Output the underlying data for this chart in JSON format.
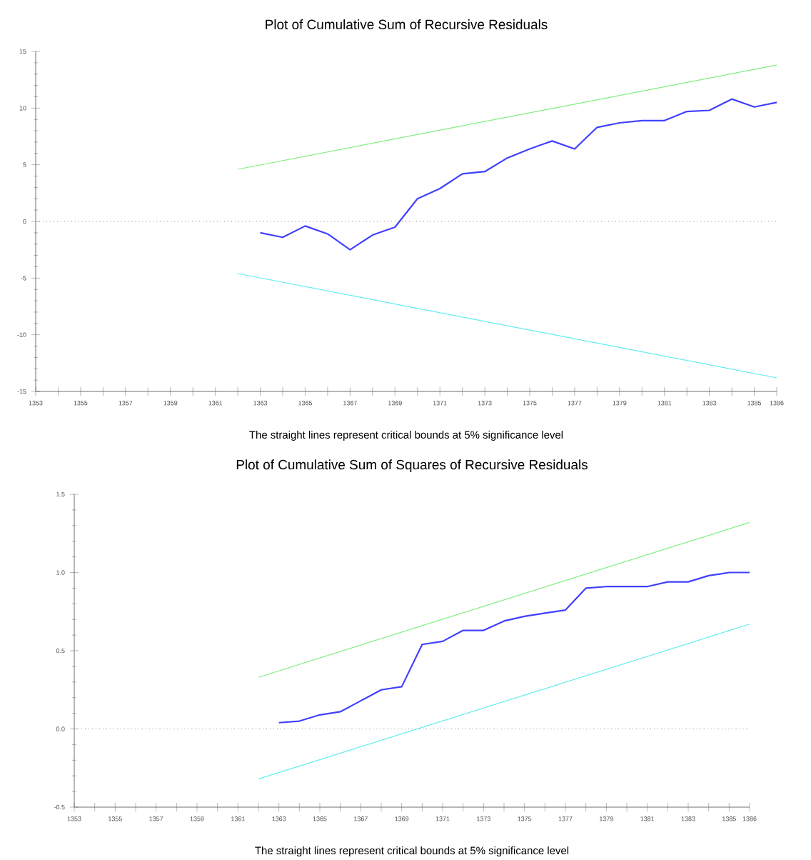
{
  "chart_data": [
    {
      "type": "line",
      "title": "Plot of Cumulative Sum of Recursive Residuals",
      "annotations": [
        "The straight lines represent critical bounds at 5% significance level"
      ],
      "xlim": [
        1353,
        1386
      ],
      "ylim": [
        -15,
        15
      ],
      "xticks": [
        1353,
        {
          "value": 1354,
          "label": null
        },
        1355,
        {
          "value": 1356,
          "label": null
        },
        1357,
        {
          "value": 1358,
          "label": null
        },
        1359,
        {
          "value": 1360,
          "label": null
        },
        1361,
        {
          "value": 1362,
          "label": null
        },
        1363,
        {
          "value": 1364,
          "label": null
        },
        1365,
        {
          "value": 1366,
          "label": null
        },
        1367,
        {
          "value": 1368,
          "label": null
        },
        1369,
        {
          "value": 1370,
          "label": null
        },
        1371,
        {
          "value": 1372,
          "label": null
        },
        1373,
        {
          "value": 1374,
          "label": null
        },
        1375,
        {
          "value": 1376,
          "label": null
        },
        1377,
        {
          "value": 1378,
          "label": null
        },
        1379,
        {
          "value": 1380,
          "label": null
        },
        1381,
        {
          "value": 1382,
          "label": null
        },
        1383,
        {
          "value": 1384,
          "label": null
        },
        1385,
        1386
      ],
      "yticks": [
        -15,
        -10,
        -5,
        0,
        5,
        10,
        15
      ],
      "series": [
        {
          "color": "#4040ff",
          "x": [
            1363,
            1364,
            1365,
            1366,
            1367,
            1368,
            1369,
            1370,
            1371,
            1372,
            1373,
            1374,
            1375,
            1376,
            1377,
            1378,
            1379,
            1380,
            1381,
            1382,
            1383,
            1384,
            1385,
            1386
          ],
          "values": [
            -1.0,
            -1.4,
            -0.4,
            -1.1,
            -2.5,
            -1.2,
            -0.5,
            2.0,
            2.9,
            4.2,
            4.4,
            5.6,
            6.4,
            7.1,
            6.4,
            8.3,
            8.7,
            8.9,
            8.9,
            9.7,
            9.8,
            10.8,
            10.1,
            10.5
          ]
        },
        {
          "color": "#80ee80",
          "x": [
            1362,
            1386
          ],
          "values": [
            4.6,
            13.8
          ]
        },
        {
          "color": "#60eeee",
          "x": [
            1362,
            1386
          ],
          "values": [
            -4.6,
            -13.8
          ]
        }
      ],
      "ref_lines": [
        {
          "axis": "y",
          "value": 0,
          "line_style": "dotted",
          "color": "#808080"
        }
      ]
    },
    {
      "type": "line",
      "title": "Plot of Cumulative Sum of Squares of Recursive Residuals",
      "annotations": [
        "The straight lines represent critical bounds at 5% significance level"
      ],
      "xlim": [
        1353,
        1386
      ],
      "ylim": [
        -0.5,
        1.5
      ],
      "xticks": [
        1353,
        {
          "value": 1354,
          "label": null
        },
        1355,
        {
          "value": 1356,
          "label": null
        },
        1357,
        {
          "value": 1358,
          "label": null
        },
        1359,
        {
          "value": 1360,
          "label": null
        },
        1361,
        {
          "value": 1362,
          "label": null
        },
        1363,
        {
          "value": 1364,
          "label": null
        },
        1365,
        {
          "value": 1366,
          "label": null
        },
        1367,
        {
          "value": 1368,
          "label": null
        },
        1369,
        {
          "value": 1370,
          "label": null
        },
        1371,
        {
          "value": 1372,
          "label": null
        },
        1373,
        {
          "value": 1374,
          "label": null
        },
        1375,
        {
          "value": 1376,
          "label": null
        },
        1377,
        {
          "value": 1378,
          "label": null
        },
        1379,
        {
          "value": 1380,
          "label": null
        },
        1381,
        {
          "value": 1382,
          "label": null
        },
        1383,
        {
          "value": 1384,
          "label": null
        },
        1385,
        1386
      ],
      "yticks": [
        -0.5,
        {
          "value": 0,
          "label": "0.0"
        },
        0.5,
        {
          "value": 1,
          "label": "1.0"
        },
        1.5
      ],
      "series": [
        {
          "color": "#4040ff",
          "x": [
            1363,
            1364,
            1365,
            1366,
            1367,
            1368,
            1369,
            1370,
            1371,
            1372,
            1373,
            1374,
            1375,
            1376,
            1377,
            1378,
            1379,
            1380,
            1381,
            1382,
            1383,
            1384,
            1385,
            1386
          ],
          "values": [
            0.04,
            0.05,
            0.09,
            0.11,
            0.18,
            0.25,
            0.27,
            0.54,
            0.56,
            0.63,
            0.63,
            0.69,
            0.72,
            0.74,
            0.76,
            0.9,
            0.91,
            0.91,
            0.91,
            0.94,
            0.94,
            0.98,
            1.0,
            1.0
          ]
        },
        {
          "color": "#80ee80",
          "x": [
            1362,
            1386
          ],
          "values": [
            0.33,
            1.32
          ]
        },
        {
          "color": "#60eeee",
          "x": [
            1362,
            1386
          ],
          "values": [
            -0.32,
            0.67
          ]
        }
      ],
      "ref_lines": [
        {
          "axis": "y",
          "value": 0,
          "line_style": "dotted",
          "color": "#808080"
        }
      ]
    }
  ]
}
